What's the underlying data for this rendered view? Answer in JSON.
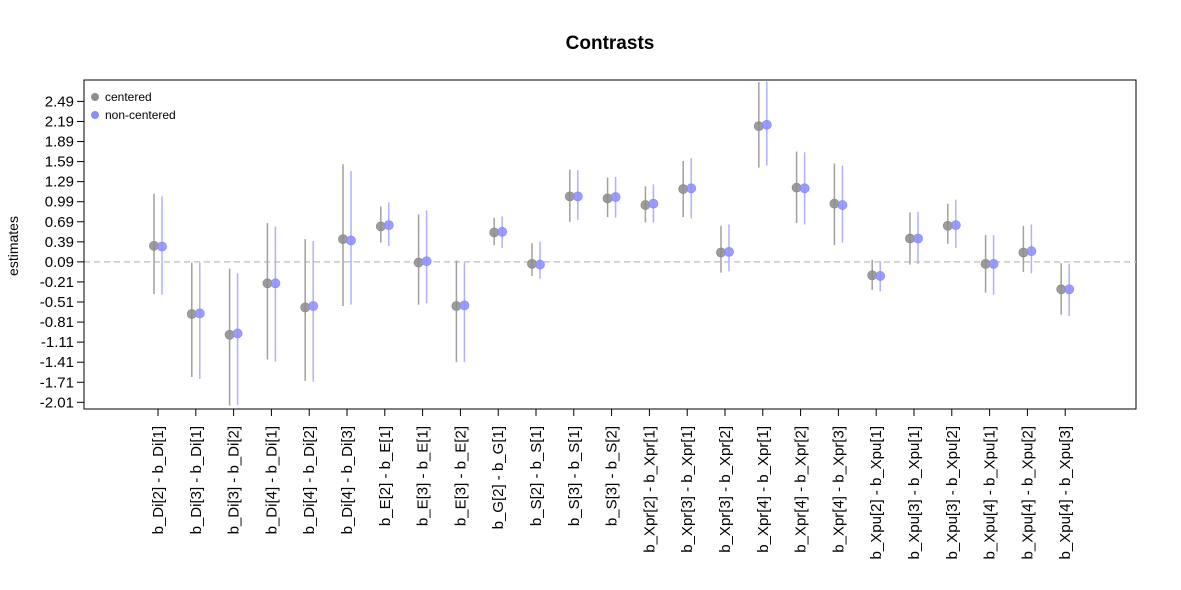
{
  "chart_data": {
    "type": "scatter",
    "title": "Contrasts",
    "xlabel": "",
    "ylabel": "estimates",
    "ylim": [
      -2.11,
      2.81
    ],
    "yticks": [
      "2.49",
      "2.19",
      "1.89",
      "1.59",
      "1.29",
      "0.99",
      "0.69",
      "0.39",
      "0.09",
      "-0.21",
      "-0.51",
      "-0.81",
      "-1.11",
      "-1.41",
      "-1.71",
      "-2.01"
    ],
    "reference_line": 0.09,
    "reference_line_style": "dashed",
    "grid": false,
    "legend_position": "top-left",
    "categories": [
      "b_Di[2] - b_Di[1]",
      "b_Di[3] - b_Di[1]",
      "b_Di[3] - b_Di[2]",
      "b_Di[4] - b_Di[1]",
      "b_Di[4] - b_Di[2]",
      "b_Di[4] - b_Di[3]",
      "b_E[2] - b_E[1]",
      "b_E[3] - b_E[1]",
      "b_E[3] - b_E[2]",
      "b_G[2] - b_G[1]",
      "b_S[2] - b_S[1]",
      "b_S[3] - b_S[1]",
      "b_S[3] - b_S[2]",
      "b_Xpr[2] - b_Xpr[1]",
      "b_Xpr[3] - b_Xpr[1]",
      "b_Xpr[3] - b_Xpr[2]",
      "b_Xpr[4] - b_Xpr[1]",
      "b_Xpr[4] - b_Xpr[2]",
      "b_Xpr[4] - b_Xpr[3]",
      "b_Xpu[2] - b_Xpu[1]",
      "b_Xpu[3] - b_Xpu[1]",
      "b_Xpu[3] - b_Xpu[2]",
      "b_Xpu[4] - b_Xpu[1]",
      "b_Xpu[4] - b_Xpu[2]",
      "b_Xpu[4] - b_Xpu[3]"
    ],
    "series": [
      {
        "name": "centered",
        "color": "#8c8c8c",
        "interval_color": "#a0a0a0",
        "estimates": [
          0.33,
          -0.69,
          -1.0,
          -0.23,
          -0.59,
          0.43,
          0.62,
          0.08,
          -0.57,
          0.53,
          0.06,
          1.07,
          1.04,
          0.94,
          1.18,
          0.23,
          2.12,
          1.2,
          0.96,
          -0.11,
          0.44,
          0.63,
          0.06,
          0.23,
          -0.32
        ],
        "lower": [
          -0.39,
          -1.63,
          -2.06,
          -1.37,
          -1.69,
          -0.57,
          0.38,
          -0.55,
          -1.41,
          0.34,
          -0.12,
          0.69,
          0.76,
          0.68,
          0.76,
          -0.07,
          1.5,
          0.67,
          0.34,
          -0.33,
          0.05,
          0.36,
          -0.37,
          -0.06,
          -0.7
        ],
        "upper": [
          1.11,
          0.08,
          -0.01,
          0.67,
          0.43,
          1.55,
          0.92,
          0.8,
          0.11,
          0.75,
          0.37,
          1.47,
          1.35,
          1.22,
          1.6,
          0.63,
          2.78,
          1.74,
          1.56,
          0.12,
          0.83,
          0.96,
          0.49,
          0.63,
          0.07
        ]
      },
      {
        "name": "non-centered",
        "color": "#8c8cff",
        "interval_color": "#b0b0ff",
        "estimates": [
          0.32,
          -0.68,
          -0.98,
          -0.23,
          -0.57,
          0.41,
          0.64,
          0.1,
          -0.56,
          0.54,
          0.05,
          1.07,
          1.06,
          0.96,
          1.19,
          0.24,
          2.14,
          1.19,
          0.94,
          -0.12,
          0.44,
          0.64,
          0.06,
          0.25,
          -0.32
        ],
        "lower": [
          -0.4,
          -1.66,
          -2.05,
          -1.4,
          -1.7,
          -0.55,
          0.33,
          -0.53,
          -1.41,
          0.3,
          -0.16,
          0.72,
          0.75,
          0.68,
          0.74,
          -0.05,
          1.53,
          0.65,
          0.38,
          -0.35,
          0.06,
          0.3,
          -0.4,
          -0.08,
          -0.72
        ],
        "upper": [
          1.07,
          0.08,
          -0.08,
          0.62,
          0.4,
          1.45,
          0.98,
          0.86,
          0.08,
          0.77,
          0.39,
          1.46,
          1.36,
          1.25,
          1.64,
          0.65,
          2.79,
          1.73,
          1.53,
          0.1,
          0.84,
          1.02,
          0.49,
          0.65,
          0.06
        ]
      }
    ]
  }
}
